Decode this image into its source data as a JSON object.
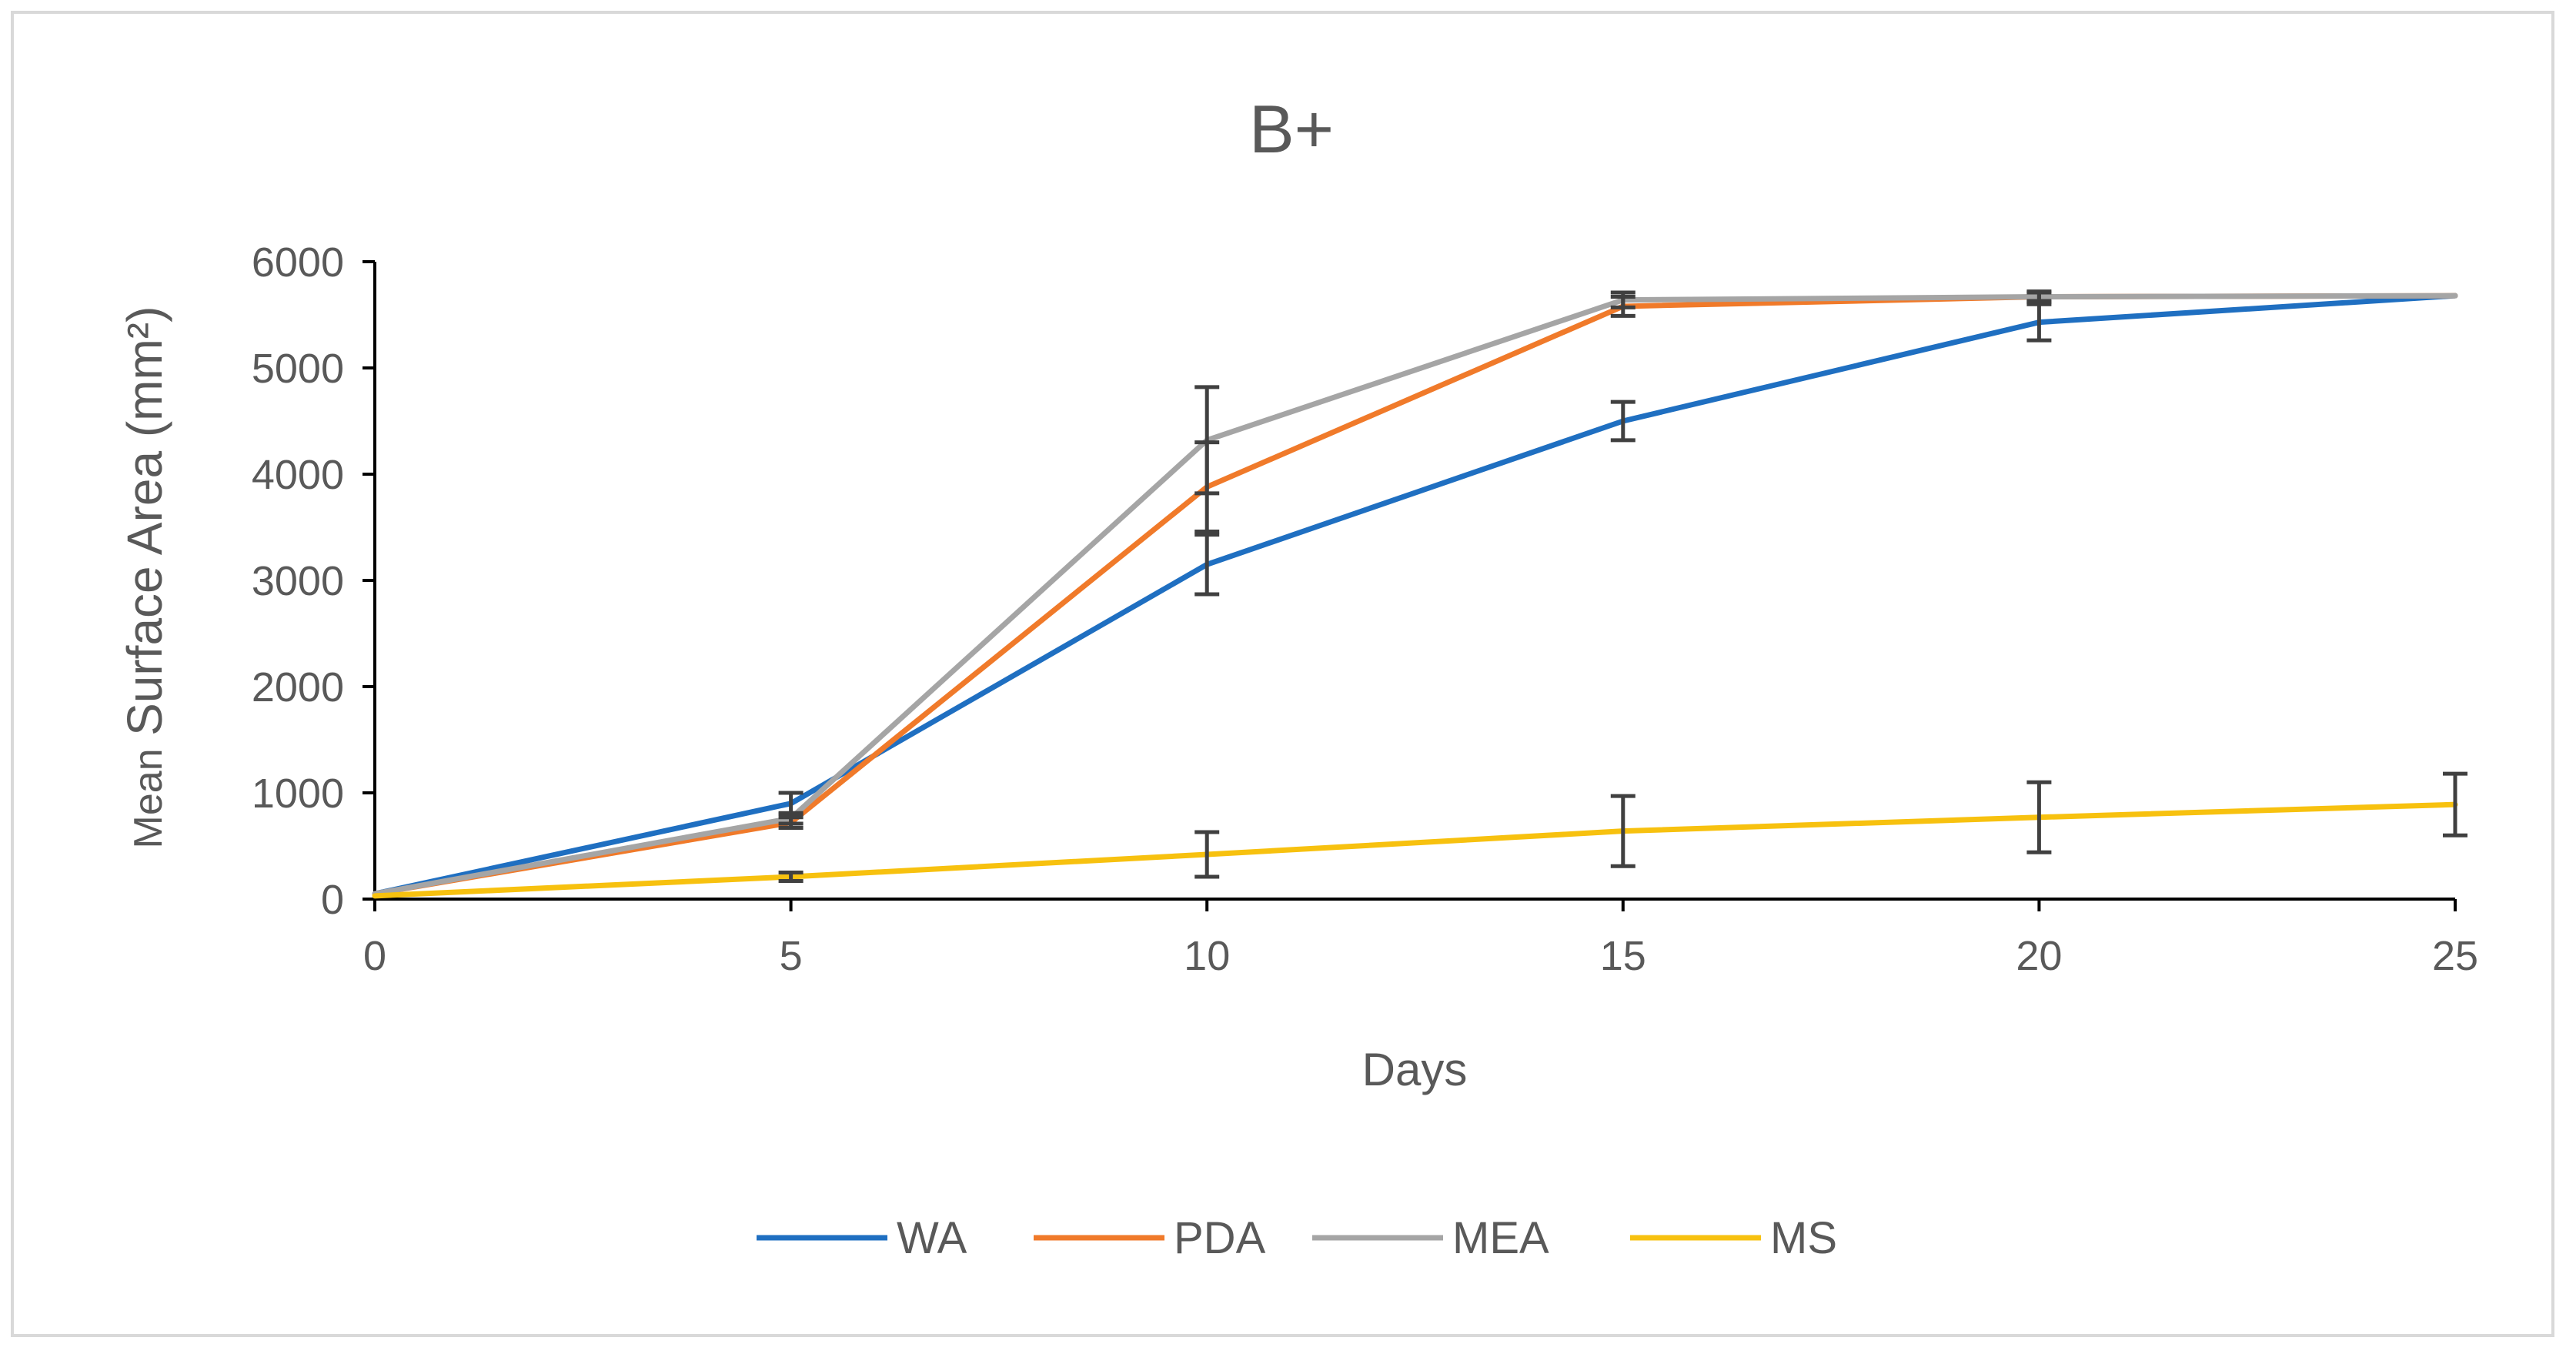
{
  "chart_data": {
    "type": "line",
    "title": "B+",
    "xlabel": "Days",
    "ylabel_prefix": "Mean",
    "ylabel_main": "Surface Area (mm²)",
    "x": [
      0,
      5,
      10,
      15,
      20,
      25
    ],
    "xlim": [
      0,
      25
    ],
    "ylim": [
      0,
      6000
    ],
    "x_ticks": [
      "0",
      "5",
      "10",
      "15",
      "20",
      "25"
    ],
    "y_ticks": [
      "0",
      "1000",
      "2000",
      "3000",
      "4000",
      "5000",
      "6000"
    ],
    "grid": false,
    "legend_position": "bottom",
    "series": [
      {
        "name": "WA",
        "color": "#1f6fc1",
        "values": [
          50,
          900,
          3150,
          4500,
          5430,
          5680
        ],
        "error": [
          0,
          100,
          280,
          180,
          170,
          0
        ]
      },
      {
        "name": "PDA",
        "color": "#f07a2a",
        "values": [
          50,
          720,
          3880,
          5580,
          5670,
          5680
        ],
        "error": [
          0,
          50,
          420,
          90,
          50,
          0
        ]
      },
      {
        "name": "MEA",
        "color": "#a5a5a5",
        "values": [
          50,
          760,
          4320,
          5640,
          5670,
          5680
        ],
        "error": [
          0,
          50,
          500,
          70,
          40,
          0
        ]
      },
      {
        "name": "MS",
        "color": "#f7c10f",
        "values": [
          30,
          210,
          420,
          640,
          770,
          890
        ],
        "error": [
          0,
          40,
          210,
          330,
          330,
          290
        ]
      }
    ]
  }
}
